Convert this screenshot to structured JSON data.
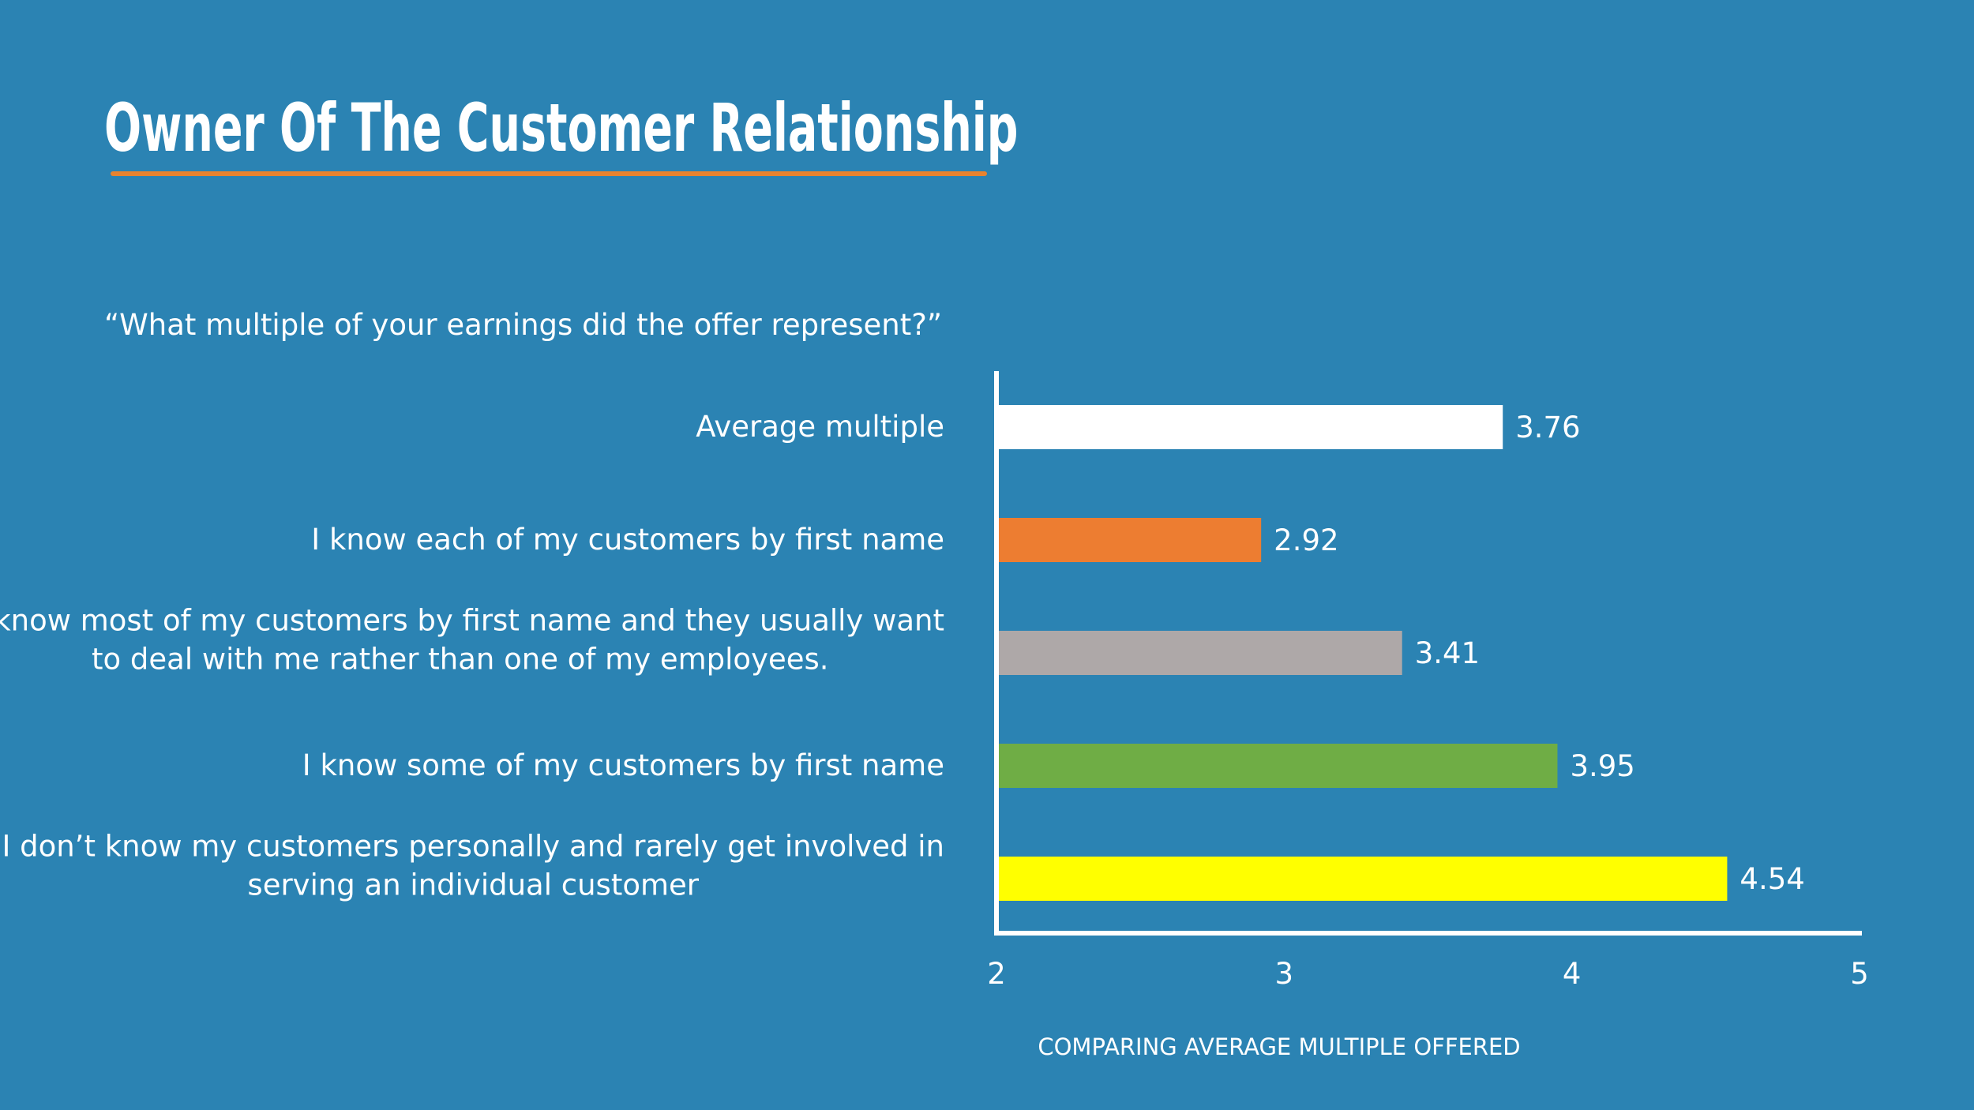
{
  "slide": {
    "title": "Owner Of The Customer Relationship",
    "question": "“What multiple of your earnings did the offer represent?”"
  },
  "colors": {
    "background": "#2b83b3",
    "underline": "#e8832f"
  },
  "chart_data": {
    "type": "bar",
    "orientation": "horizontal",
    "categories": [
      [
        "Average multiple"
      ],
      [
        "I know each of my customers by first name"
      ],
      [
        "I know most of my customers by first name and they usually want",
        "to deal with me rather than one of my employees."
      ],
      [
        "I know some of my customers by first name"
      ],
      [
        "I don’t know my customers personally and rarely get involved in",
        "serving an individual customer"
      ]
    ],
    "values": [
      3.76,
      2.92,
      3.41,
      3.95,
      4.54
    ],
    "value_labels": [
      "3.76",
      "2.92",
      "3.41",
      "3.95",
      "4.54"
    ],
    "bar_colors": [
      "#ffffff",
      "#ed7d31",
      "#aea8a8",
      "#6fad45",
      "#ffff00"
    ],
    "xlim": [
      2,
      5
    ],
    "xticks": [
      "2",
      "3",
      "4",
      "5"
    ],
    "xlabel": "COMPARING AVERAGE MULTIPLE OFFERED",
    "ylabel": "",
    "grid": false,
    "legend": "none"
  }
}
